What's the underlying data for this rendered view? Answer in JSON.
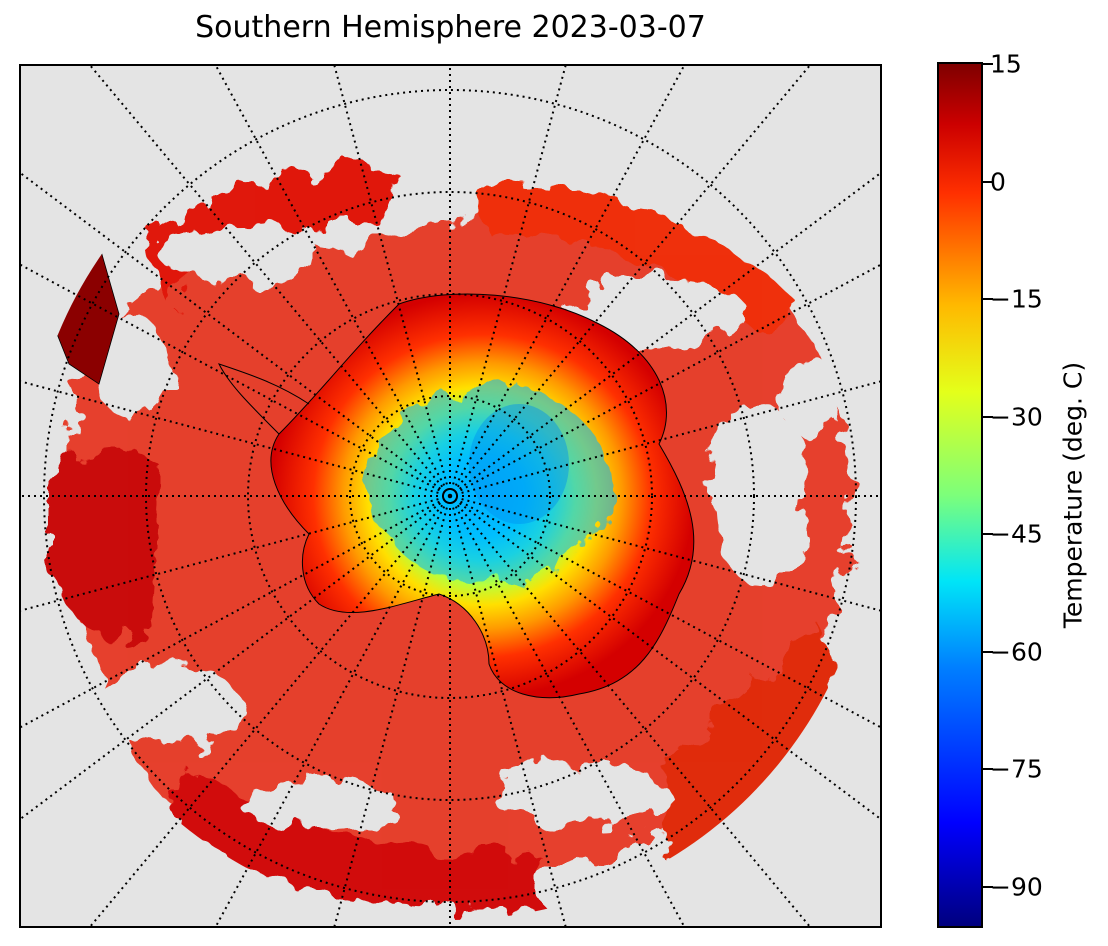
{
  "title": "Southern Hemisphere 2023-03-07",
  "map": {
    "projection": "south-polar-stereographic",
    "graticule": "dotted",
    "land_outline_color": "#000000",
    "no_data_color": "#e4e4e4"
  },
  "colorbar": {
    "label": "Temperature (deg. C)",
    "colormap": "jet",
    "range": [
      -95,
      15
    ],
    "ticks": [
      "15",
      "0",
      "−15",
      "−30",
      "−45",
      "−60",
      "−75",
      "−90"
    ]
  }
}
